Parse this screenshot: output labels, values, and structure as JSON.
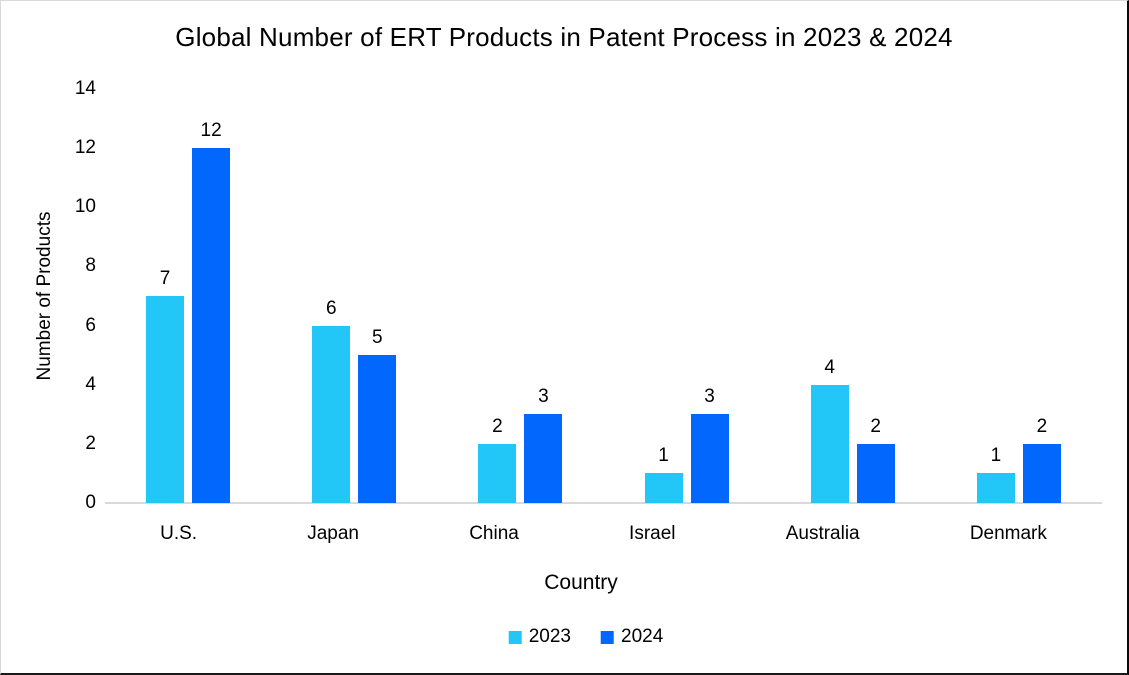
{
  "chart_data": {
    "type": "bar",
    "title": "Global Number of ERT Products in Patent Process in 2023 & 2024",
    "xlabel": "Country",
    "ylabel": "Number of Products",
    "categories": [
      "U.S.",
      "Japan",
      "China",
      "Israel",
      "Australia",
      "Denmark"
    ],
    "series": [
      {
        "name": "2023",
        "color": "#22C7F7",
        "values": [
          7,
          6,
          2,
          1,
          4,
          1
        ]
      },
      {
        "name": "2024",
        "color": "#0267FC",
        "values": [
          12,
          5,
          3,
          3,
          2,
          2
        ]
      }
    ],
    "ylim": [
      0,
      14
    ],
    "yticks": [
      0,
      2,
      4,
      6,
      8,
      10,
      12,
      14
    ],
    "grid": false,
    "value_labels": true,
    "legend_position": "bottom",
    "axis_line_color": "#D9D9D9",
    "text_color": "#000000"
  }
}
